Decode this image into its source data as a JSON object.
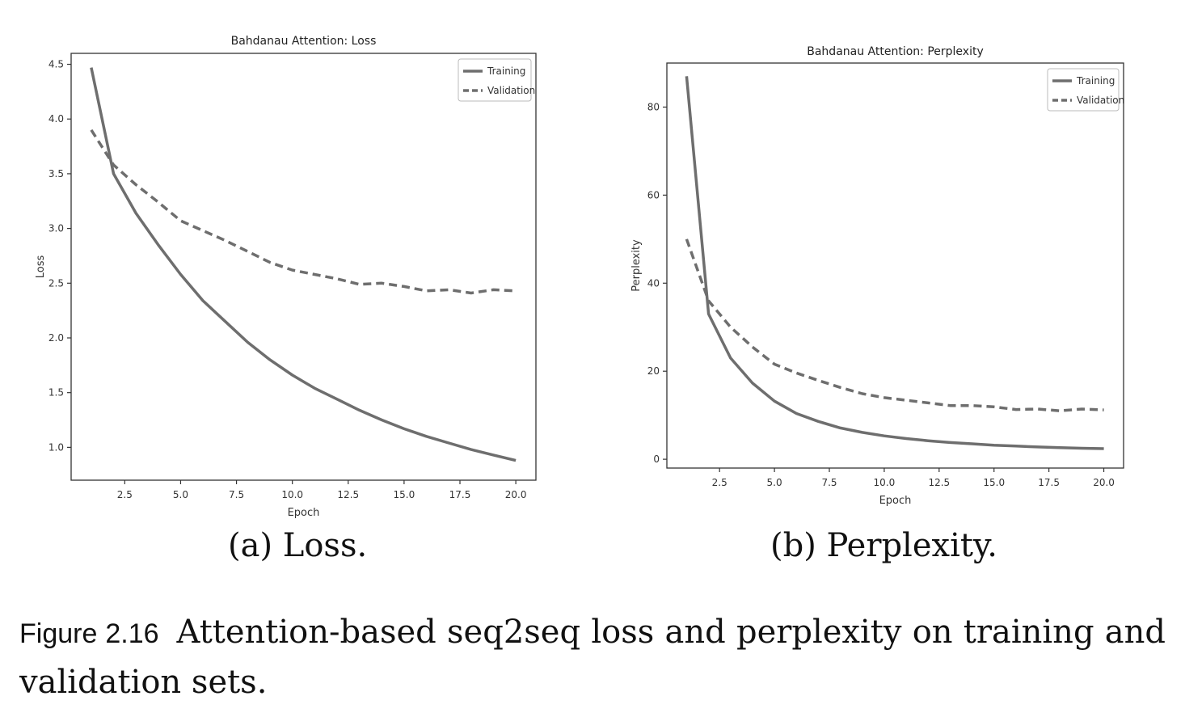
{
  "chart_data": [
    {
      "type": "line",
      "title": "Bahdanau Attention: Loss",
      "xlabel": "Epoch",
      "ylabel": "Loss",
      "xlim": [
        0.1,
        20.9
      ],
      "ylim": [
        0.7,
        4.6
      ],
      "xticks": [
        2.5,
        5.0,
        7.5,
        10.0,
        12.5,
        15.0,
        17.5,
        20.0
      ],
      "xtick_labels": [
        "2.5",
        "5.0",
        "7.5",
        "10.0",
        "12.5",
        "15.0",
        "17.5",
        "20.0"
      ],
      "yticks": [
        1.0,
        1.5,
        2.0,
        2.5,
        3.0,
        3.5,
        4.0,
        4.5
      ],
      "ytick_labels": [
        "1.0",
        "1.5",
        "2.0",
        "2.5",
        "3.0",
        "3.5",
        "4.0",
        "4.5"
      ],
      "grid": false,
      "legend": "top-right",
      "x": [
        1,
        2,
        3,
        4,
        5,
        6,
        7,
        8,
        9,
        10,
        11,
        12,
        13,
        14,
        15,
        16,
        17,
        18,
        19,
        20
      ],
      "series": [
        {
          "name": "Training",
          "style": "solid",
          "values": [
            4.47,
            3.5,
            3.14,
            2.85,
            2.58,
            2.34,
            2.15,
            1.96,
            1.8,
            1.66,
            1.54,
            1.44,
            1.34,
            1.25,
            1.17,
            1.1,
            1.04,
            0.98,
            0.93,
            0.88
          ]
        },
        {
          "name": "Validation",
          "style": "dashed",
          "values": [
            3.9,
            3.58,
            3.4,
            3.24,
            3.07,
            2.98,
            2.89,
            2.79,
            2.69,
            2.62,
            2.58,
            2.54,
            2.49,
            2.5,
            2.47,
            2.43,
            2.44,
            2.41,
            2.44,
            2.43
          ]
        }
      ],
      "colors": {
        "line": "#6e6e6e",
        "axes": "#333333"
      }
    },
    {
      "type": "line",
      "title": "Bahdanau Attention: Perplexity",
      "xlabel": "Epoch",
      "ylabel": "Perplexity",
      "xlim": [
        0.1,
        20.9
      ],
      "ylim": [
        -2,
        90
      ],
      "xticks": [
        2.5,
        5.0,
        7.5,
        10.0,
        12.5,
        15.0,
        17.5,
        20.0
      ],
      "xtick_labels": [
        "2.5",
        "5.0",
        "7.5",
        "10.0",
        "12.5",
        "15.0",
        "17.5",
        "20.0"
      ],
      "yticks": [
        0,
        20,
        40,
        60,
        80
      ],
      "ytick_labels": [
        "0",
        "20",
        "40",
        "60",
        "80"
      ],
      "grid": false,
      "legend": "top-right",
      "x": [
        1,
        2,
        3,
        4,
        5,
        6,
        7,
        8,
        9,
        10,
        11,
        12,
        13,
        14,
        15,
        16,
        17,
        18,
        19,
        20
      ],
      "series": [
        {
          "name": "Training",
          "style": "solid",
          "values": [
            87,
            33,
            23,
            17.3,
            13.2,
            10.4,
            8.6,
            7.1,
            6.1,
            5.3,
            4.7,
            4.2,
            3.8,
            3.5,
            3.2,
            3.0,
            2.8,
            2.65,
            2.5,
            2.4
          ]
        },
        {
          "name": "Validation",
          "style": "dashed",
          "values": [
            50,
            36,
            30,
            25.5,
            21.6,
            19.6,
            17.9,
            16.3,
            14.9,
            14.0,
            13.4,
            12.8,
            12.2,
            12.2,
            11.9,
            11.3,
            11.4,
            11.0,
            11.4,
            11.2
          ]
        }
      ],
      "colors": {
        "line": "#6e6e6e",
        "axes": "#333333"
      }
    }
  ],
  "subcaptions": {
    "a": "(a) Loss.",
    "b": "(b) Perplexity."
  },
  "caption": {
    "label": "Figure 2.16",
    "text": "Attention-based seq2seq loss and perplexity on training and validation sets."
  }
}
